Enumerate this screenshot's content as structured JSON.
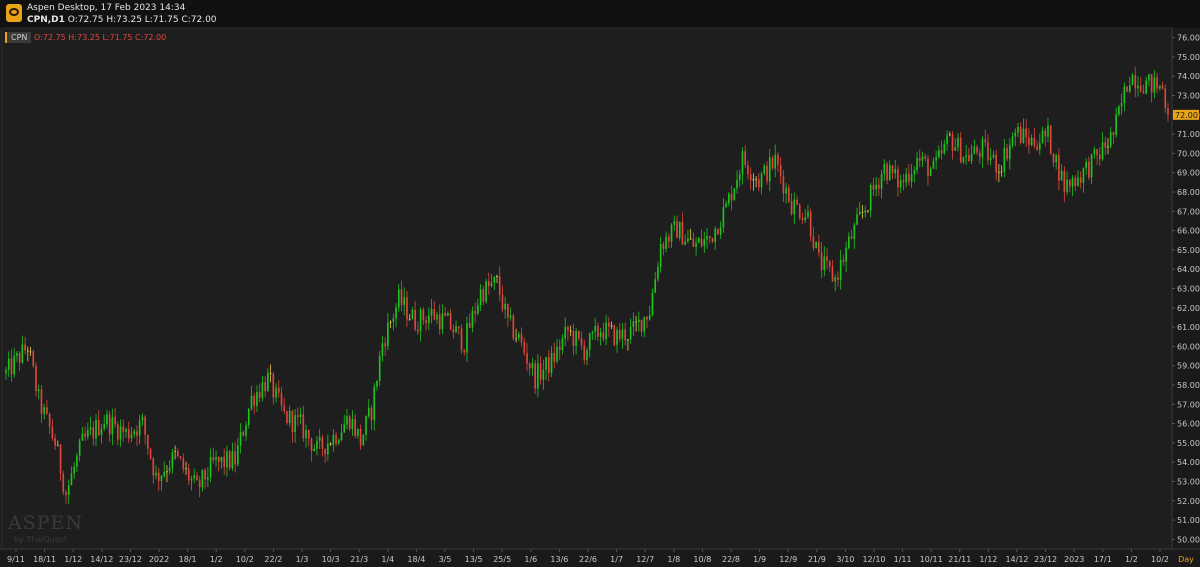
{
  "titlebar": {
    "app_title": "Aspen Desktop, 17 Feb 2023 14:34",
    "symbol_timeframe": "CPN,D1",
    "ohlc": "O:72.75 H:73.25 L:71.75 C:72.00"
  },
  "legend": {
    "symbol": "CPN",
    "ohlc": "O:72.75 H:73.25 L:71.75 C:72.00"
  },
  "watermark": {
    "brand": "ASPEN",
    "sub": "by ThaiQuest"
  },
  "colors": {
    "up": "#1ec41e",
    "down": "#e0473c",
    "doji": "#e8c84a",
    "background": "#1e1e1e",
    "axis_text": "#c8c8c8",
    "last_price_bg": "#e8a317"
  },
  "chart_data": {
    "type": "candlestick",
    "ylim": [
      49.5,
      76.5
    ],
    "yticks": [
      50,
      51,
      52,
      53,
      54,
      55,
      56,
      57,
      58,
      59,
      60,
      61,
      62,
      63,
      64,
      65,
      66,
      67,
      68,
      69,
      70,
      71,
      72,
      73,
      74,
      75,
      76
    ],
    "last_price": "72.00",
    "timeframe_label": "Day",
    "date_labels": [
      "9/11",
      "18/11",
      "1/12",
      "14/12",
      "23/12",
      "2022",
      "18/1",
      "1/2",
      "10/2",
      "22/2",
      "1/3",
      "10/3",
      "21/3",
      "1/4",
      "18/4",
      "3/5",
      "13/5",
      "25/5",
      "1/6",
      "13/6",
      "22/6",
      "1/7",
      "12/7",
      "1/8",
      "10/8",
      "22/8",
      "1/9",
      "12/9",
      "21/9",
      "3/10",
      "12/10",
      "1/11",
      "10/11",
      "21/11",
      "1/12",
      "14/12",
      "23/12",
      "2023",
      "17/1",
      "1/2",
      "10/2"
    ],
    "anchors": [
      [
        0,
        58.6
      ],
      [
        8,
        60.0
      ],
      [
        12,
        57.2
      ],
      [
        18,
        55.0
      ],
      [
        22,
        52.4
      ],
      [
        28,
        55.0
      ],
      [
        36,
        56.2
      ],
      [
        44,
        55.5
      ],
      [
        50,
        56.0
      ],
      [
        55,
        53.2
      ],
      [
        62,
        54.3
      ],
      [
        70,
        52.6
      ],
      [
        76,
        53.9
      ],
      [
        84,
        54.1
      ],
      [
        90,
        57.3
      ],
      [
        96,
        58.3
      ],
      [
        102,
        56.4
      ],
      [
        108,
        55.9
      ],
      [
        114,
        54.6
      ],
      [
        120,
        55.3
      ],
      [
        126,
        56.3
      ],
      [
        130,
        55.1
      ],
      [
        134,
        56.7
      ],
      [
        138,
        60.2
      ],
      [
        144,
        62.4
      ],
      [
        150,
        61.3
      ],
      [
        156,
        61.7
      ],
      [
        162,
        61.2
      ],
      [
        168,
        60.2
      ],
      [
        174,
        62.8
      ],
      [
        180,
        63.3
      ],
      [
        184,
        61.2
      ],
      [
        188,
        60.4
      ],
      [
        194,
        58.4
      ],
      [
        200,
        59.2
      ],
      [
        206,
        60.8
      ],
      [
        212,
        59.8
      ],
      [
        218,
        60.9
      ],
      [
        224,
        60.5
      ],
      [
        230,
        60.8
      ],
      [
        236,
        61.9
      ],
      [
        240,
        65.3
      ],
      [
        246,
        66.1
      ],
      [
        252,
        65.2
      ],
      [
        258,
        65.6
      ],
      [
        264,
        67.2
      ],
      [
        270,
        69.7
      ],
      [
        276,
        68.6
      ],
      [
        282,
        69.6
      ],
      [
        288,
        67.4
      ],
      [
        294,
        66.8
      ],
      [
        298,
        64.4
      ],
      [
        304,
        63.5
      ],
      [
        310,
        65.7
      ],
      [
        316,
        67.5
      ],
      [
        322,
        69.3
      ],
      [
        328,
        68.4
      ],
      [
        334,
        69.7
      ],
      [
        340,
        69.1
      ],
      [
        346,
        70.8
      ],
      [
        352,
        69.8
      ],
      [
        358,
        70.2
      ],
      [
        364,
        69.3
      ],
      [
        370,
        71.1
      ],
      [
        376,
        70.6
      ],
      [
        382,
        70.9
      ],
      [
        388,
        68.3
      ],
      [
        394,
        68.9
      ],
      [
        400,
        69.8
      ],
      [
        406,
        71.0
      ],
      [
        412,
        74.1
      ],
      [
        418,
        73.6
      ],
      [
        424,
        73.4
      ],
      [
        426,
        72.0
      ]
    ],
    "n_candles": 427
  }
}
